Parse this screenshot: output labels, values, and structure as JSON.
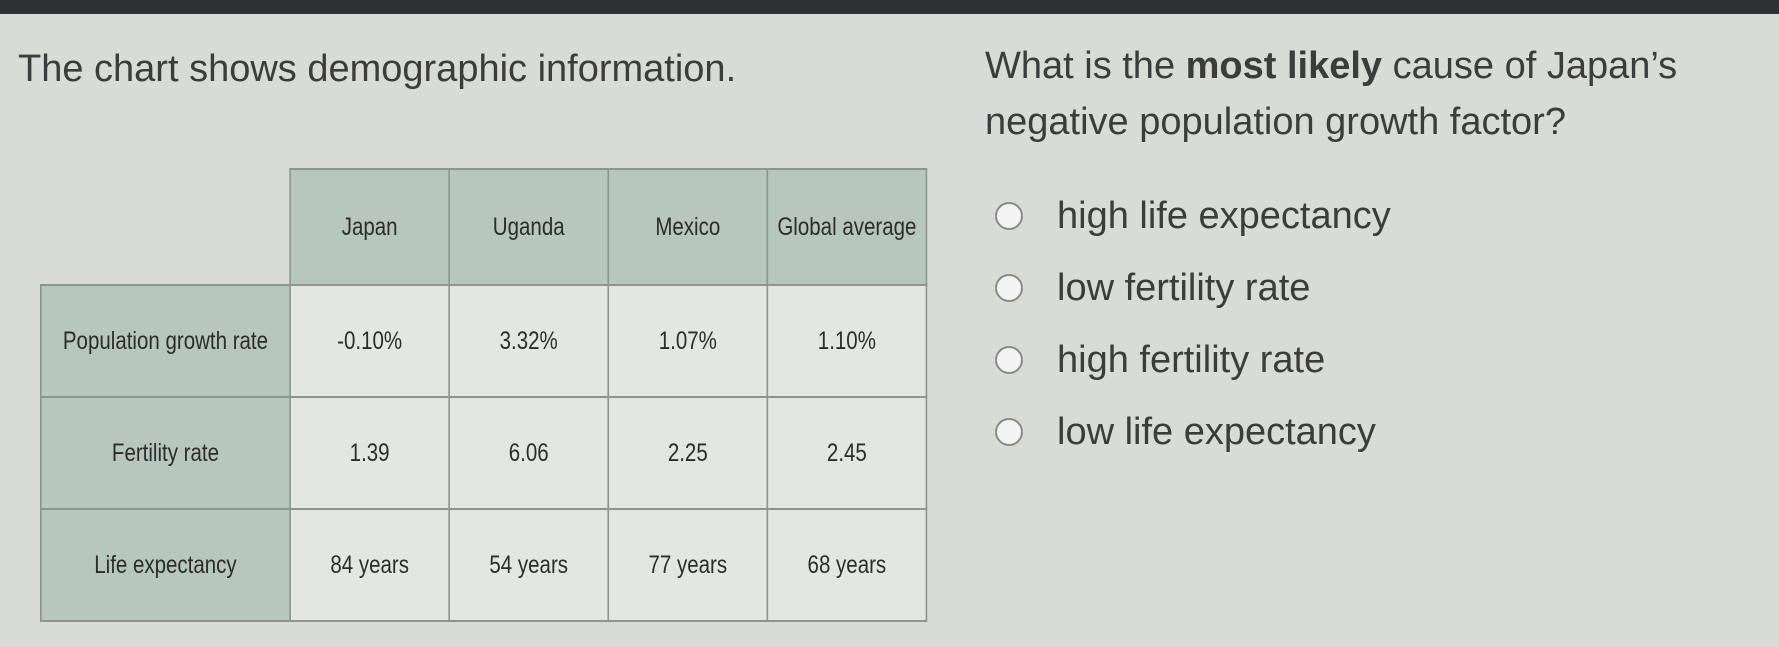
{
  "prompt": {
    "intro": "The chart shows demographic information.",
    "question_before": "What is the ",
    "question_bold": "most likely",
    "question_after": " cause of Japan’s negative population growth factor?"
  },
  "table": {
    "columns": [
      "Japan",
      "Uganda",
      "Mexico",
      "Global average"
    ],
    "rows": [
      {
        "label": "Population growth rate",
        "values": [
          "-0.10%",
          "3.32%",
          "1.07%",
          "1.10%"
        ]
      },
      {
        "label": "Fertility rate",
        "values": [
          "1.39",
          "6.06",
          "2.25",
          "2.45"
        ]
      },
      {
        "label": "Life expectancy",
        "values": [
          "84 years",
          "54 years",
          "77 years",
          "68 years"
        ]
      }
    ]
  },
  "answers": [
    {
      "label": "high life expectancy",
      "selected": false
    },
    {
      "label": "low fertility rate",
      "selected": false
    },
    {
      "label": "high fertility rate",
      "selected": false
    },
    {
      "label": "low life expectancy",
      "selected": false
    }
  ]
}
